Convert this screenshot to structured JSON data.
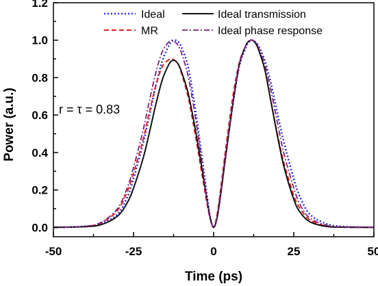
{
  "chart_data": {
    "type": "line",
    "title": "",
    "xlabel": "Time (ps)",
    "ylabel": "Power (a.u.)",
    "xlim": [
      -50,
      50
    ],
    "ylim": [
      -0.05,
      1.2
    ],
    "xticks": [
      -50,
      -25,
      0,
      25,
      50
    ],
    "xtick_labels": [
      "-50",
      "-25",
      "0",
      "25",
      "50"
    ],
    "yticks": [
      0.0,
      0.2,
      0.4,
      0.6,
      0.8,
      1.0,
      1.2
    ],
    "ytick_labels": [
      "0.0",
      "0.2",
      "0.4",
      "0.6",
      "0.8",
      "1.0",
      "1.2"
    ],
    "grid": false,
    "legend_placement": "top",
    "annotation": "r = τ = 0.83",
    "x": [
      -50,
      -40,
      -35,
      -30,
      -27,
      -25,
      -22,
      -20,
      -18,
      -16,
      -14,
      -13,
      -12,
      -11,
      -10,
      -8,
      -6,
      -4,
      -2,
      -1,
      0,
      1,
      2,
      4,
      6,
      8,
      10,
      11,
      12,
      13,
      14,
      16,
      18,
      20,
      22,
      25,
      27,
      30,
      35,
      40,
      50
    ],
    "series": [
      {
        "name": "Ideal",
        "color": "#1f2fd6",
        "dash": "dotted",
        "values": [
          0.0,
          0.005,
          0.02,
          0.07,
          0.16,
          0.26,
          0.45,
          0.6,
          0.76,
          0.89,
          0.97,
          0.995,
          1.0,
          0.99,
          0.96,
          0.86,
          0.66,
          0.42,
          0.16,
          0.05,
          0.0,
          0.05,
          0.16,
          0.42,
          0.66,
          0.86,
          0.96,
          0.99,
          1.0,
          0.99,
          0.97,
          0.89,
          0.76,
          0.6,
          0.45,
          0.26,
          0.16,
          0.07,
          0.02,
          0.005,
          0.0
        ]
      },
      {
        "name": "MR",
        "color": "#e02020",
        "dash": "dashed",
        "values": [
          0.0,
          0.005,
          0.025,
          0.09,
          0.19,
          0.29,
          0.47,
          0.62,
          0.76,
          0.86,
          0.895,
          0.9,
          0.89,
          0.87,
          0.82,
          0.7,
          0.52,
          0.32,
          0.12,
          0.04,
          0.0,
          0.06,
          0.18,
          0.45,
          0.7,
          0.88,
          0.97,
          0.995,
          1.0,
          0.985,
          0.95,
          0.84,
          0.66,
          0.49,
          0.34,
          0.17,
          0.1,
          0.04,
          0.008,
          0.001,
          0.0
        ]
      },
      {
        "name": "Ideal transmission",
        "color": "#111111",
        "dash": "solid",
        "values": [
          0.0,
          0.004,
          0.015,
          0.06,
          0.13,
          0.21,
          0.37,
          0.51,
          0.66,
          0.79,
          0.87,
          0.89,
          0.89,
          0.87,
          0.83,
          0.72,
          0.55,
          0.35,
          0.14,
          0.045,
          0.0,
          0.045,
          0.15,
          0.41,
          0.66,
          0.87,
          0.97,
          0.995,
          1.0,
          0.985,
          0.95,
          0.84,
          0.66,
          0.48,
          0.32,
          0.15,
          0.08,
          0.03,
          0.005,
          0.001,
          0.0
        ]
      },
      {
        "name": "Ideal phase response",
        "color": "#7a1f7a",
        "dash": "dashdot",
        "values": [
          0.0,
          0.006,
          0.028,
          0.1,
          0.21,
          0.32,
          0.52,
          0.68,
          0.83,
          0.94,
          0.99,
          1.0,
          0.99,
          0.97,
          0.93,
          0.81,
          0.62,
          0.39,
          0.14,
          0.045,
          0.0,
          0.05,
          0.16,
          0.42,
          0.67,
          0.87,
          0.97,
          0.995,
          1.0,
          0.99,
          0.96,
          0.87,
          0.72,
          0.55,
          0.39,
          0.21,
          0.12,
          0.05,
          0.012,
          0.002,
          0.0
        ]
      }
    ]
  }
}
